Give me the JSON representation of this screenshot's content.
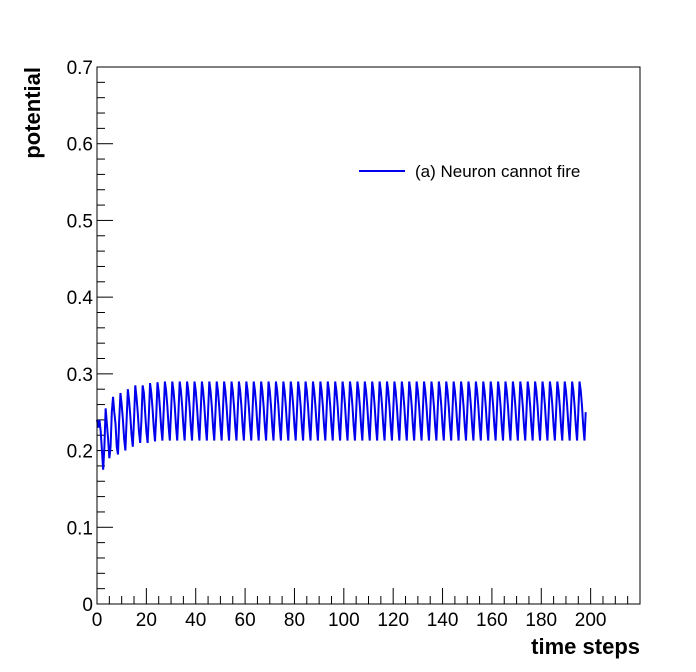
{
  "chart_data": {
    "type": "line",
    "title": "",
    "xlabel": "time steps",
    "ylabel": "potential",
    "xlim": [
      0,
      220
    ],
    "ylim": [
      0,
      0.7
    ],
    "x_ticks": [
      0,
      20,
      40,
      60,
      80,
      100,
      120,
      140,
      160,
      180,
      200
    ],
    "y_ticks": [
      0,
      0.1,
      0.2,
      0.3,
      0.4,
      0.5,
      0.6,
      0.7
    ],
    "x_tick_labels": [
      "0",
      "20",
      "40",
      "60",
      "80",
      "100",
      "120",
      "140",
      "160",
      "180",
      "200"
    ],
    "y_tick_labels": [
      "0",
      "0.1",
      "0.2",
      "0.3",
      "0.4",
      "0.5",
      "0.6",
      "0.7"
    ],
    "grid": false,
    "legend_position": "top-right",
    "series": [
      {
        "name": "(a) Neuron cannot fire",
        "color": "#0000ee",
        "x_start": 0,
        "x_end": 198,
        "x_step": 0.5,
        "values": [
          0.24,
          0.23,
          0.24,
          0.225,
          0.2,
          0.175,
          0.205,
          0.255,
          0.235,
          0.215,
          0.19,
          0.205,
          0.25,
          0.27,
          0.25,
          0.235,
          0.205,
          0.195,
          0.24,
          0.275,
          0.26,
          0.24,
          0.215,
          0.2,
          0.24,
          0.28,
          0.265,
          0.245,
          0.22,
          0.205,
          0.24,
          0.285,
          0.27,
          0.25,
          0.225,
          0.21,
          0.24,
          0.285,
          0.275,
          0.25,
          0.225,
          0.21,
          0.245,
          0.288,
          0.275,
          0.255,
          0.23,
          0.212,
          0.245,
          0.289,
          0.277,
          0.255,
          0.23,
          0.213,
          0.25,
          0.29,
          0.278,
          0.258,
          0.232,
          0.213,
          0.25,
          0.29,
          0.278,
          0.258,
          0.232,
          0.213,
          0.25,
          0.29,
          0.278,
          0.258,
          0.232,
          0.213,
          0.25,
          0.29,
          0.278,
          0.258,
          0.232,
          0.213,
          0.25,
          0.29,
          0.278,
          0.258,
          0.232,
          0.213,
          0.25,
          0.29,
          0.278,
          0.258,
          0.232,
          0.213,
          0.25,
          0.29,
          0.278,
          0.258,
          0.232,
          0.213,
          0.25,
          0.29,
          0.278,
          0.258,
          0.232,
          0.213,
          0.25,
          0.29,
          0.278,
          0.258,
          0.232,
          0.213,
          0.25,
          0.29,
          0.278,
          0.258,
          0.232,
          0.213,
          0.25,
          0.29,
          0.278,
          0.258,
          0.232,
          0.213,
          0.25,
          0.29,
          0.278,
          0.258,
          0.232,
          0.213,
          0.25,
          0.29,
          0.278,
          0.258,
          0.232,
          0.213,
          0.25,
          0.29,
          0.278,
          0.258,
          0.232,
          0.213,
          0.25,
          0.29,
          0.278,
          0.258,
          0.232,
          0.213,
          0.25,
          0.29,
          0.278,
          0.258,
          0.232,
          0.213,
          0.25,
          0.29,
          0.278,
          0.258,
          0.232,
          0.213,
          0.25,
          0.29,
          0.278,
          0.258,
          0.232,
          0.213,
          0.25,
          0.29,
          0.278,
          0.258,
          0.232,
          0.213,
          0.25,
          0.29,
          0.278,
          0.258,
          0.232,
          0.213,
          0.25,
          0.29,
          0.278,
          0.258,
          0.232,
          0.213,
          0.25,
          0.29,
          0.278,
          0.258,
          0.232,
          0.213,
          0.25,
          0.29,
          0.278,
          0.258,
          0.232,
          0.213,
          0.25,
          0.29,
          0.278,
          0.258,
          0.232,
          0.213,
          0.25,
          0.29,
          0.278,
          0.258,
          0.232,
          0.213,
          0.25,
          0.29,
          0.278,
          0.258,
          0.232,
          0.213,
          0.25,
          0.29,
          0.278,
          0.258,
          0.232,
          0.213,
          0.25,
          0.29,
          0.278,
          0.258,
          0.232,
          0.213,
          0.25,
          0.29,
          0.278,
          0.258,
          0.232,
          0.213,
          0.25,
          0.29,
          0.278,
          0.258,
          0.232,
          0.213,
          0.25,
          0.29,
          0.278,
          0.258,
          0.232,
          0.213,
          0.25,
          0.29,
          0.278,
          0.258,
          0.232,
          0.213,
          0.25,
          0.29,
          0.278,
          0.258,
          0.232,
          0.213,
          0.25,
          0.29,
          0.278,
          0.258,
          0.232,
          0.213,
          0.25,
          0.29,
          0.278,
          0.258,
          0.232,
          0.213,
          0.25,
          0.29,
          0.278,
          0.258,
          0.232,
          0.213,
          0.25,
          0.29,
          0.278,
          0.258,
          0.232,
          0.213,
          0.25,
          0.29,
          0.278,
          0.258,
          0.232,
          0.213,
          0.25,
          0.29,
          0.278,
          0.258,
          0.232,
          0.213,
          0.25,
          0.29,
          0.278,
          0.258,
          0.232,
          0.213,
          0.25,
          0.29,
          0.278,
          0.258,
          0.232,
          0.213,
          0.25,
          0.29,
          0.278,
          0.258,
          0.232,
          0.213,
          0.25,
          0.29,
          0.278,
          0.258,
          0.232,
          0.213,
          0.25,
          0.29,
          0.278,
          0.258,
          0.232,
          0.213,
          0.25,
          0.29,
          0.278,
          0.258,
          0.232,
          0.213,
          0.25,
          0.29,
          0.278,
          0.258,
          0.232,
          0.213,
          0.25,
          0.29,
          0.278,
          0.258,
          0.232,
          0.213,
          0.25,
          0.29,
          0.278,
          0.258,
          0.232,
          0.213,
          0.25,
          0.29,
          0.278,
          0.258,
          0.232,
          0.213,
          0.25,
          0.29,
          0.278,
          0.258,
          0.232,
          0.213,
          0.25,
          0.29,
          0.278,
          0.258,
          0.232,
          0.213,
          0.25,
          0.29,
          0.278,
          0.258,
          0.232,
          0.213,
          0.25,
          0.29,
          0.278,
          0.258,
          0.232,
          0.213,
          0.25,
          0.29,
          0.278,
          0.258,
          0.232,
          0.213,
          0.25,
          0.29,
          0.278,
          0.258,
          0.232,
          0.213,
          0.25,
          0.29,
          0.278,
          0.258,
          0.232,
          0.213,
          0.25,
          0.29,
          0.278,
          0.258,
          0.232,
          0.213,
          0.25,
          0.29,
          0.278,
          0.258,
          0.232,
          0.213,
          0.25,
          0.29,
          0.278,
          0.258,
          0.232,
          0.213,
          0.25,
          0.29,
          0.278,
          0.258,
          0.232,
          0.213,
          0.25,
          0.29,
          0.278,
          0.258,
          0.232,
          0.213,
          0.25,
          0.29,
          0.278,
          0.258,
          0.232,
          0.213,
          0.25,
          0.29,
          0.278,
          0.258,
          0.232,
          0.213,
          0.25,
          0.29,
          0.278,
          0.258,
          0.232,
          0.213,
          0.25,
          0.29,
          0.278,
          0.258,
          0.232,
          0.213,
          0.25,
          0.29,
          0.278,
          0.258,
          0.232,
          0.213,
          0.25,
          0.29,
          0.278,
          0.258,
          0.232,
          0.213,
          0.25,
          0.29,
          0.278,
          0.258,
          0.232,
          0.213,
          0.25,
          0.29,
          0.278,
          0.258,
          0.232,
          0.213,
          0.25,
          0.29,
          0.278,
          0.258,
          0.232,
          0.213,
          0.25,
          0.29,
          0.278,
          0.258,
          0.232,
          0.213,
          0.25,
          0.29,
          0.278,
          0.258,
          0.232,
          0.213,
          0.25,
          0.29,
          0.278,
          0.258,
          0.232,
          0.213,
          0.25,
          0.29,
          0.278,
          0.258,
          0.232,
          0.213,
          0.25,
          0.29,
          0.278,
          0.258,
          0.232,
          0.213,
          0.25,
          0.29,
          0.278,
          0.258,
          0.232,
          0.213,
          0.25,
          0.29,
          0.278,
          0.258,
          0.232,
          0.213,
          0.25,
          0.29,
          0.278,
          0.258,
          0.232,
          0.213,
          0.25,
          0.29,
          0.278,
          0.258,
          0.232,
          0.213,
          0.25,
          0.29,
          0.278,
          0.258,
          0.232,
          0.213,
          0.25,
          0.29,
          0.278,
          0.258,
          0.232,
          0.213,
          0.25,
          0.29,
          0.278,
          0.258,
          0.232,
          0.213,
          0.25,
          0.29,
          0.278,
          0.258,
          0.232,
          0.213,
          0.25,
          0.29,
          0.278,
          0.258,
          0.232,
          0.213,
          0.25,
          0.29,
          0.278,
          0.258,
          0.232,
          0.213,
          0.25,
          0.29,
          0.278,
          0.258,
          0.232,
          0.213,
          0.25,
          0.29,
          0.278,
          0.258,
          0.232,
          0.213
        ]
      }
    ]
  }
}
